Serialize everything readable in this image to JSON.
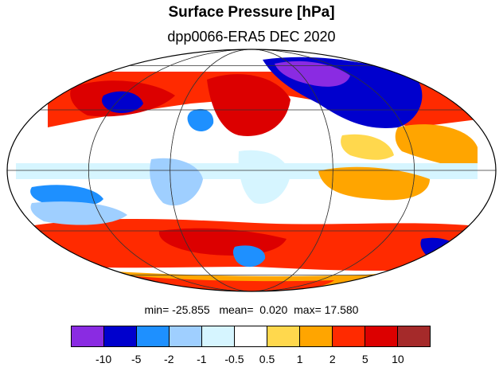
{
  "title": "Surface Pressure [hPa]",
  "subtitle": "dpp0066-ERA5  DEC 2020",
  "stats": {
    "min_label": "min=",
    "min_value": "-25.855",
    "mean_label": "mean=",
    "mean_value": "0.020",
    "max_label": "max=",
    "max_value": "17.580"
  },
  "colorbar": {
    "colors": [
      "#8a2be2",
      "#0000cd",
      "#1e90ff",
      "#9fcfff",
      "#d6f5ff",
      "#ffffff",
      "#ffd84d",
      "#ffa500",
      "#ff2a00",
      "#dc0000",
      "#a52a2a"
    ],
    "labels": [
      "-10",
      "-5",
      "-2",
      "-1",
      "-0.5",
      "0.5",
      "1",
      "2",
      "5",
      "10"
    ]
  },
  "map": {
    "projection": "mollweide",
    "gridlines": true,
    "field_colors": {
      "strong_neg": "#8a2be2",
      "neg_10": "#0000cd",
      "neg_5": "#1e90ff",
      "neg_2": "#9fcfff",
      "neg_1": "#d6f5ff",
      "neutral": "#ffffff",
      "pos_1": "#ffd84d",
      "pos_2": "#ffa500",
      "pos_5": "#ff2a00",
      "pos_10": "#dc0000",
      "strong_pos": "#a52a2a"
    }
  }
}
